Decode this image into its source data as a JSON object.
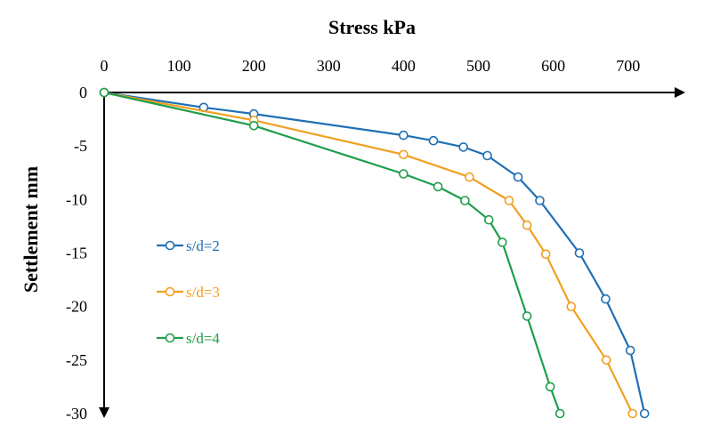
{
  "chart_data": {
    "type": "line",
    "title": "",
    "xlabel": "Stress kPa",
    "ylabel": "Settlement  mm",
    "xlim": [
      0,
      750
    ],
    "ylim": [
      -30,
      0
    ],
    "x_ticks": [
      0,
      100,
      200,
      300,
      400,
      500,
      600,
      700
    ],
    "y_ticks": [
      0,
      -5,
      -10,
      -15,
      -20,
      -25,
      -30
    ],
    "x_axis_position": "top",
    "grid": false,
    "legend_position": "left-middle",
    "series": [
      {
        "name": "s/d=2",
        "color": "#1f6fb5",
        "marker": "open-circle",
        "x": [
          0,
          133,
          200,
          400,
          440,
          480,
          512,
          553,
          582,
          635,
          670,
          703,
          722
        ],
        "y": [
          0,
          -1.4,
          -2.0,
          -4.0,
          -4.5,
          -5.1,
          -5.9,
          -7.9,
          -10.1,
          -15.0,
          -19.3,
          -24.1,
          -30.0
        ]
      },
      {
        "name": "s/d=3",
        "color": "#f0a020",
        "marker": "open-circle",
        "x": [
          0,
          200,
          400,
          488,
          541,
          565,
          590,
          624,
          671,
          706
        ],
        "y": [
          0,
          -2.6,
          -5.8,
          -7.9,
          -10.1,
          -12.4,
          -15.1,
          -20.0,
          -25.0,
          -30.0
        ]
      },
      {
        "name": "s/d=4",
        "color": "#1f9e4a",
        "marker": "open-circle",
        "x": [
          0,
          200,
          400,
          446,
          482,
          514,
          532,
          565,
          596,
          609
        ],
        "y": [
          0,
          -3.1,
          -7.6,
          -8.8,
          -10.1,
          -11.9,
          -14.0,
          -20.9,
          -27.5,
          -30.0
        ]
      }
    ]
  }
}
